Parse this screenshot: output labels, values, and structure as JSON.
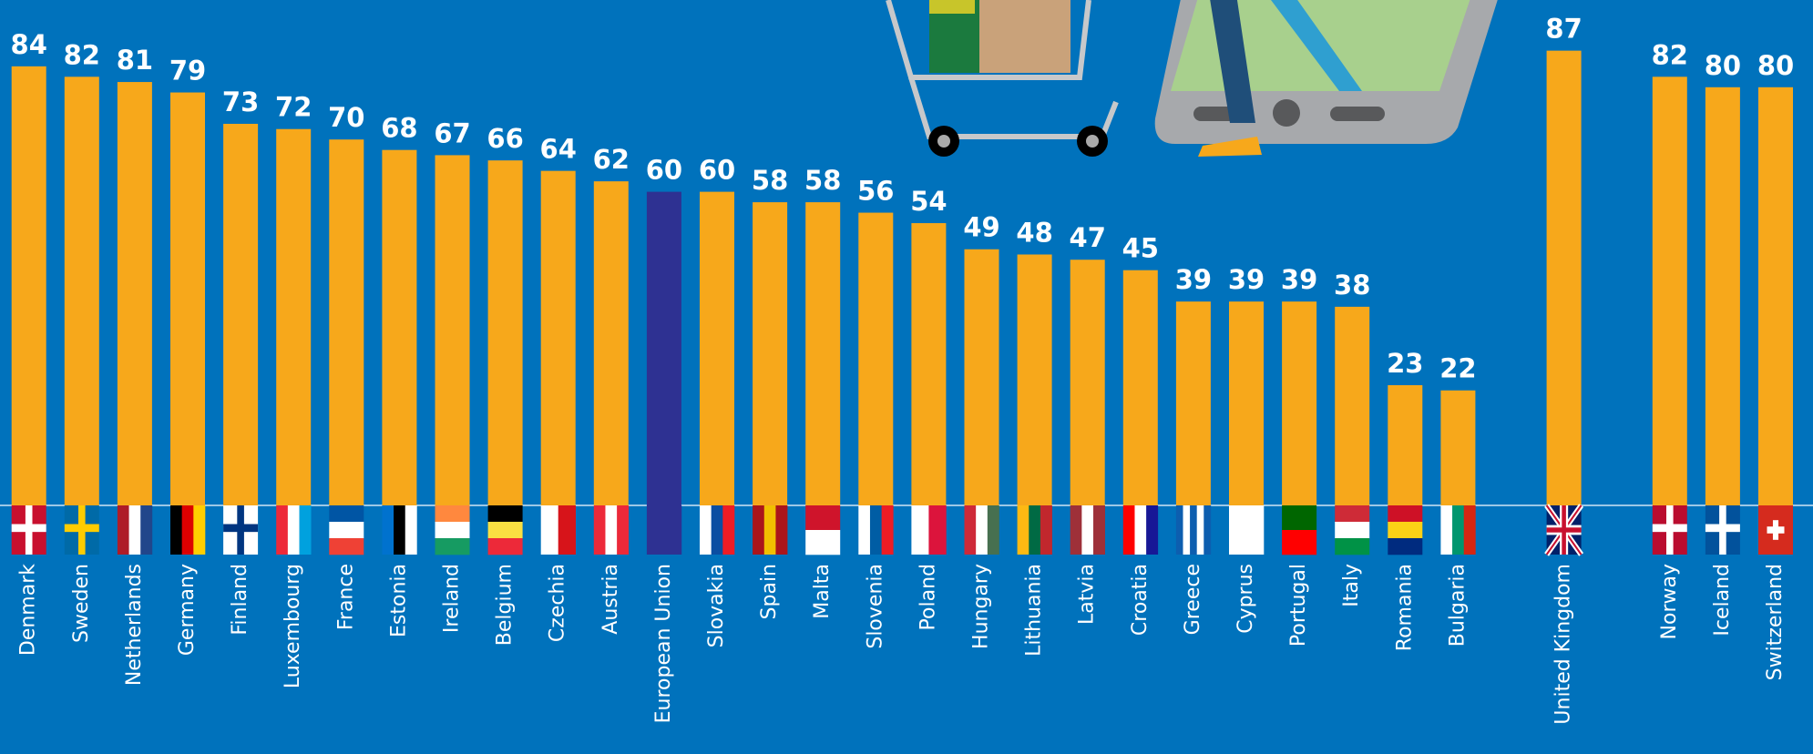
{
  "chart_data": {
    "type": "bar",
    "categories": [
      "Denmark",
      "Sweden",
      "Netherlands",
      "Germany",
      "Finland",
      "Luxembourg",
      "France",
      "Estonia",
      "Ireland",
      "Belgium",
      "Czechia",
      "Austria",
      "European Union",
      "Slovakia",
      "Spain",
      "Malta",
      "Slovenia",
      "Poland",
      "Hungary",
      "Lithuania",
      "Latvia",
      "Croatia",
      "Greece",
      "Cyprus",
      "Portugal",
      "Italy",
      "Romania",
      "Bulgaria",
      "United Kingdom",
      "Norway",
      "Iceland",
      "Switzerland"
    ],
    "values": [
      84,
      82,
      81,
      79,
      73,
      72,
      70,
      68,
      67,
      66,
      64,
      62,
      60,
      60,
      58,
      58,
      56,
      54,
      49,
      48,
      47,
      45,
      39,
      39,
      39,
      38,
      23,
      22,
      87,
      82,
      80,
      80
    ],
    "colors": [
      "#f7a81b",
      "#f7a81b",
      "#f7a81b",
      "#f7a81b",
      "#f7a81b",
      "#f7a81b",
      "#f7a81b",
      "#f7a81b",
      "#f7a81b",
      "#f7a81b",
      "#f7a81b",
      "#f7a81b",
      "#2e3192",
      "#f7a81b",
      "#f7a81b",
      "#f7a81b",
      "#f7a81b",
      "#f7a81b",
      "#f7a81b",
      "#f7a81b",
      "#f7a81b",
      "#f7a81b",
      "#f7a81b",
      "#f7a81b",
      "#f7a81b",
      "#f7a81b",
      "#f7a81b",
      "#f7a81b",
      "#f7a81b",
      "#f7a81b",
      "#f7a81b",
      "#f7a81b"
    ]
  }
}
